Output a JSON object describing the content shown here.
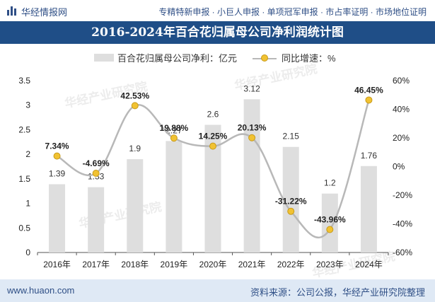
{
  "header": {
    "site_name": "华经情报网",
    "services": "专精特新申报 · 小巨人申报 · 单项冠军申报 · 市占率证明 · 市场地位证明",
    "logo_icon": "bar-chart-icon"
  },
  "colors": {
    "title_bg": "#1f4e87",
    "bar": "#dedede",
    "line": "#b8b8b8",
    "marker": "#f1c232",
    "footer_bg": "#dfe9f5",
    "brand": "#2f4f86"
  },
  "watermark": "华经产业研究院",
  "footer": {
    "url": "www.huaon.com",
    "source": "资料来源：公司公报，华经产业研究院整理"
  },
  "chart_data": {
    "type": "bar+line",
    "title": "2016-2024年百合花归属母公司净利润统计图",
    "categories": [
      "2016年",
      "2017年",
      "2018年",
      "2019年",
      "2020年",
      "2021年",
      "2022年",
      "2023年",
      "2024年"
    ],
    "series": [
      {
        "name": "百合花归属母公司净利：亿元",
        "type": "bar",
        "axis": "left",
        "values": [
          1.39,
          1.33,
          1.9,
          2.27,
          2.6,
          3.12,
          2.15,
          1.2,
          1.76
        ],
        "labels": [
          "1.39",
          "1.33",
          "1.9",
          "2.27",
          "2.6",
          "3.12",
          "2.15",
          "1.2",
          "1.76"
        ]
      },
      {
        "name": "同比增速：%",
        "type": "line",
        "axis": "right",
        "values": [
          7.34,
          -4.69,
          42.53,
          19.88,
          14.25,
          20.13,
          -31.22,
          -43.96,
          46.45
        ],
        "labels": [
          "7.34%",
          "-4.69%",
          "42.53%",
          "19.88%",
          "14.25%",
          "20.13%",
          "-31.22%",
          "-43.96%",
          "46.45%"
        ]
      }
    ],
    "y_left": {
      "min": 0,
      "max": 3.5,
      "ticks": [
        "0",
        "0.5",
        "1",
        "1.5",
        "2",
        "2.5",
        "3",
        "3.5"
      ]
    },
    "y_right": {
      "min": -60,
      "max": 60,
      "ticks": [
        "-60%",
        "-40%",
        "-20%",
        "0%",
        "20%",
        "40%",
        "60%"
      ]
    },
    "legend": "top-center",
    "grid": false
  }
}
